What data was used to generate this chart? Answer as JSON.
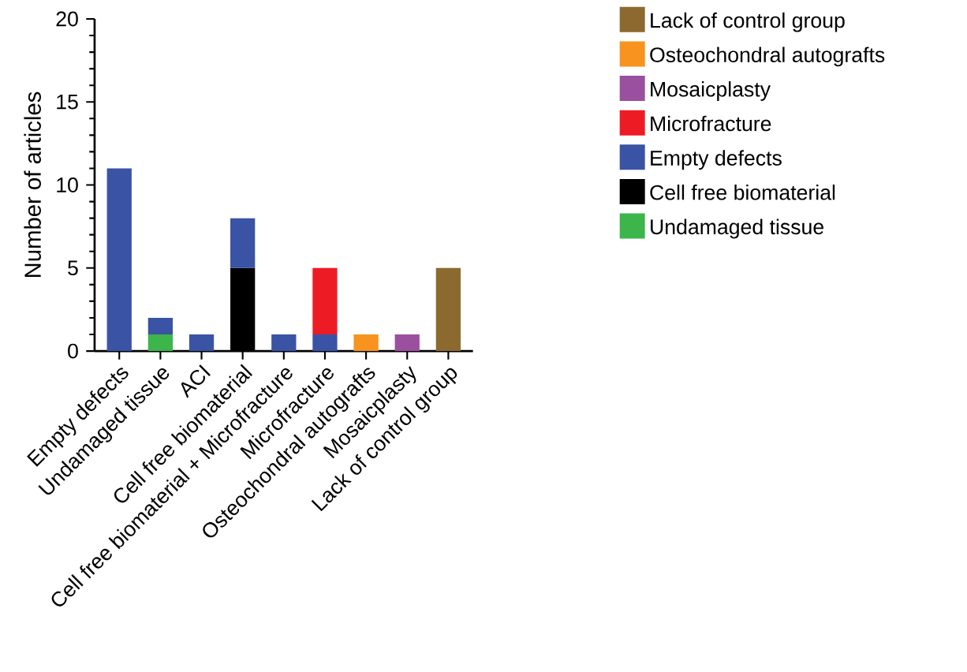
{
  "chart_data": {
    "type": "bar",
    "stacked": true,
    "ylabel": "Number of articles",
    "categories": [
      "Empty defects",
      "Undamaged tissue",
      "ACI",
      "Cell free biomaterial",
      "Cell free biomaterial + Microfracture",
      "Microfracture",
      "Osteochondral autografts",
      "Mosaicplasty",
      "Lack of control group"
    ],
    "series": [
      {
        "name": "Undamaged tissue",
        "color": "#3cb54a",
        "values": [
          null,
          1,
          null,
          null,
          null,
          null,
          null,
          null,
          null
        ]
      },
      {
        "name": "Cell free biomaterial",
        "color": "#000000",
        "values": [
          null,
          null,
          null,
          5,
          null,
          null,
          null,
          null,
          null
        ]
      },
      {
        "name": "Empty defects",
        "color": "#3a53a4",
        "values": [
          11,
          1,
          1,
          3,
          1,
          1,
          null,
          null,
          null
        ]
      },
      {
        "name": "Microfracture",
        "color": "#ed1c24",
        "values": [
          null,
          null,
          null,
          null,
          null,
          4,
          null,
          null,
          null
        ]
      },
      {
        "name": "Mosaicplasty",
        "color": "#9b4f9f",
        "values": [
          null,
          null,
          null,
          null,
          null,
          null,
          null,
          1,
          null
        ]
      },
      {
        "name": "Osteochondral autografts",
        "color": "#f7931e",
        "values": [
          null,
          null,
          null,
          null,
          null,
          null,
          1,
          null,
          null
        ]
      },
      {
        "name": "Lack of control group",
        "color": "#8c6a2f",
        "values": [
          null,
          null,
          null,
          null,
          null,
          null,
          null,
          null,
          5
        ]
      }
    ],
    "ylim": [
      0,
      20
    ],
    "yticks": [
      0,
      5,
      10,
      15,
      20
    ],
    "legend": "right"
  }
}
